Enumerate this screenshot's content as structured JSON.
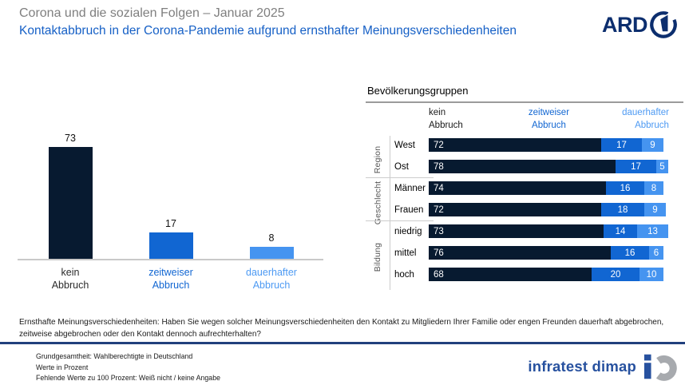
{
  "header": {
    "supertitle": "Corona und die sozialen Folgen – Januar 2025",
    "title": "Kontaktabbruch in der Corona-Pandemie aufgrund ernsthafter Meinungsverschiedenheiten",
    "brand": "ARD"
  },
  "colors": {
    "series_dark": "#071a30",
    "series_mid": "#1166d2",
    "series_light": "#4594f0",
    "label_dark": "#2b2b2b",
    "label_mid": "#1166d2",
    "label_light": "#4d9af3",
    "title_blue": "#1660c6",
    "supertitle_gray": "#7f7f7f",
    "divider_navy": "#21407d",
    "ard_navy": "#0c2e6e",
    "dimap_blue": "#27519f"
  },
  "chart_data": [
    {
      "type": "bar",
      "title": "",
      "categories": [
        "kein\nAbbruch",
        "zeitweiser\nAbbruch",
        "dauerhafter\nAbbruch"
      ],
      "values": [
        73,
        17,
        8
      ],
      "colors": [
        "#071a30",
        "#1166d2",
        "#4594f0"
      ],
      "label_colors": [
        "#2b2b2b",
        "#1166d2",
        "#4d9af3"
      ],
      "xlabel": "",
      "ylabel": "",
      "ylim": [
        0,
        80
      ],
      "grid": false,
      "value_labels": "above bars"
    },
    {
      "type": "bar",
      "stacked": true,
      "orientation": "horizontal",
      "title": "Bevölkerungsgruppen",
      "column_headers": [
        "kein\nAbbruch",
        "zeitweiser\nAbbruch",
        "dauerhafter\nAbbruch"
      ],
      "header_colors": [
        "#1a1a1a",
        "#1166d2",
        "#4d9af3"
      ],
      "colors": [
        "#071a30",
        "#1166d2",
        "#4594f0"
      ],
      "xlim": [
        0,
        100
      ],
      "legend_position": "top as column headers",
      "groups": [
        {
          "label": "Region",
          "rows": [
            {
              "label": "West",
              "values": [
                72,
                17,
                9
              ]
            },
            {
              "label": "Ost",
              "values": [
                78,
                17,
                5
              ]
            }
          ]
        },
        {
          "label": "Geschlecht",
          "rows": [
            {
              "label": "Männer",
              "values": [
                74,
                16,
                8
              ]
            },
            {
              "label": "Frauen",
              "values": [
                72,
                18,
                9
              ]
            }
          ]
        },
        {
          "label": "Bildung",
          "rows": [
            {
              "label": "niedrig",
              "values": [
                73,
                14,
                13
              ]
            },
            {
              "label": "mittel",
              "values": [
                76,
                16,
                6
              ]
            },
            {
              "label": "hoch",
              "values": [
                68,
                20,
                10
              ]
            }
          ]
        }
      ]
    }
  ],
  "footnote": {
    "question": "Ernsthafte Meinungsverschiedenheiten: Haben Sie wegen solcher Meinungsverschiedenheiten den Kontakt zu Mitgliedern Ihrer Familie oder engen Freunden dauerhaft abgebrochen, zeitweise abgebrochen oder den Kontakt dennoch aufrechterhalten?"
  },
  "footer": {
    "lines": [
      "Grundgesamtheit: Wahlberechtigte in Deutschland",
      "Werte in Prozent",
      "Fehlende Werte zu 100 Prozent: Weiß nicht / keine Angabe"
    ],
    "brand": "infratest dimap"
  }
}
